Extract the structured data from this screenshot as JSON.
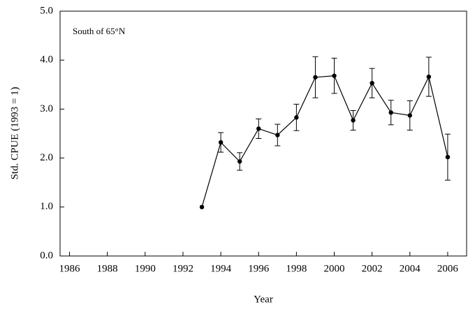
{
  "chart_data": {
    "type": "line",
    "annotation": "South of 65°N",
    "xlabel": "Year",
    "ylabel": "Std. CPUE (1993 = 1)",
    "x": [
      1993,
      1994,
      1995,
      1996,
      1997,
      1998,
      1999,
      2000,
      2001,
      2002,
      2003,
      2004,
      2005,
      2006
    ],
    "series": [
      {
        "color": "#000000",
        "values": [
          1.0,
          2.32,
          1.93,
          2.6,
          2.47,
          2.83,
          3.65,
          3.68,
          2.77,
          3.53,
          2.93,
          2.87,
          3.66,
          2.02
        ],
        "errors": [
          null,
          0.2,
          0.18,
          0.2,
          0.22,
          0.27,
          0.42,
          0.36,
          0.2,
          0.3,
          0.25,
          0.3,
          0.4,
          0.47
        ]
      }
    ],
    "xlim": [
      1985.5,
      2007
    ],
    "xticks": [
      1986,
      1988,
      1990,
      1992,
      1994,
      1996,
      1998,
      2000,
      2002,
      2004,
      2006
    ],
    "ylim": [
      0,
      5
    ],
    "yticks": [
      {
        "value": 0,
        "label": "0.0"
      },
      {
        "value": 1,
        "label": "1.0"
      },
      {
        "value": 2,
        "label": "2.0"
      },
      {
        "value": 3,
        "label": "3.0"
      },
      {
        "value": 4,
        "label": "4.0"
      },
      {
        "value": 5,
        "label": "5.0"
      }
    ]
  }
}
